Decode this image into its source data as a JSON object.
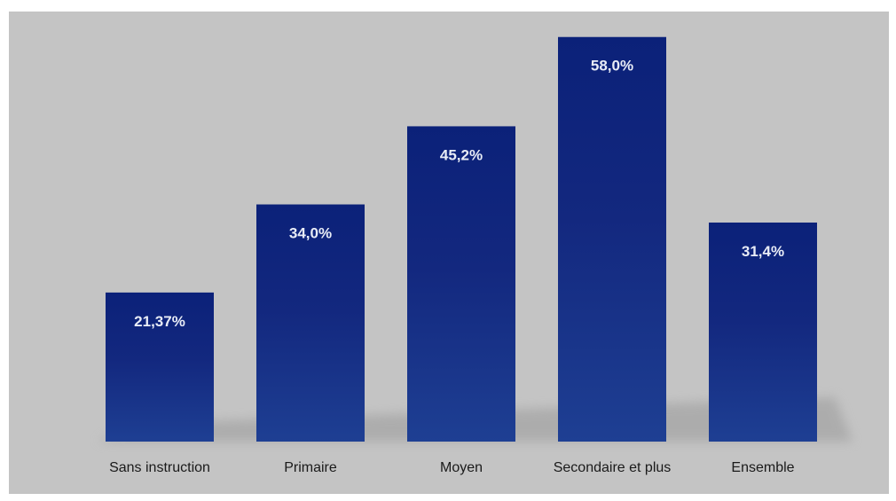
{
  "chart_data": {
    "type": "bar",
    "categories": [
      "Sans instruction",
      "Primaire",
      "Moyen",
      "Secondaire et plus",
      "Ensemble"
    ],
    "values": [
      21.37,
      34.0,
      45.2,
      58.0,
      31.4
    ],
    "value_labels": [
      "21,37%",
      "34,0%",
      "45,2%",
      "58,0%",
      "31,4%"
    ],
    "title": "",
    "xlabel": "",
    "ylabel": "",
    "ylim": [
      0,
      60
    ],
    "grid": false,
    "legend": "none",
    "bar_color": "#0b2179",
    "bar_color_light": "#1e3f93",
    "background_color": "#c4c4c4",
    "value_label_color": "#e8ecf6",
    "category_label_color": "#1a1a1a"
  }
}
